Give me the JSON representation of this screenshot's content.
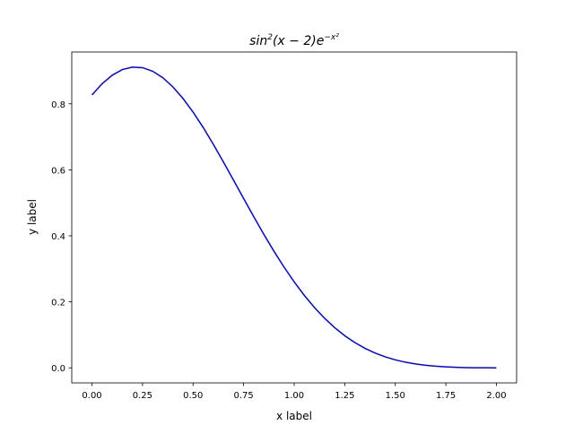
{
  "chart_data": {
    "type": "line",
    "title": "sin²(x − 2)e^(−x²)",
    "title_parts": {
      "base": "sin",
      "sup1": "2",
      "mid": "(x − 2)e",
      "sup2": "−x²"
    },
    "xlabel": "x label",
    "ylabel": "y label",
    "xlim": [
      -0.1,
      2.1
    ],
    "ylim": [
      -0.0456,
      0.957
    ],
    "grid": false,
    "xticks": [
      0,
      0.25,
      0.5,
      0.75,
      1.0,
      1.25,
      1.5,
      1.75,
      2.0
    ],
    "xtick_labels": [
      "0.00",
      "0.25",
      "0.50",
      "0.75",
      "1.00",
      "1.25",
      "1.50",
      "1.75",
      "2.00"
    ],
    "yticks": [
      0,
      0.2,
      0.4,
      0.6,
      0.8
    ],
    "ytick_labels": [
      "0.0",
      "0.2",
      "0.4",
      "0.6",
      "0.8"
    ],
    "series": [
      {
        "color": "#0000ff",
        "x": [
          0,
          0.05,
          0.1,
          0.15,
          0.2,
          0.25,
          0.3,
          0.35,
          0.4,
          0.45,
          0.5,
          0.55,
          0.6,
          0.65,
          0.7,
          0.75,
          0.8,
          0.85,
          0.9,
          0.95,
          1.0,
          1.05,
          1.1,
          1.15,
          1.2,
          1.25,
          1.3,
          1.35,
          1.4,
          1.45,
          1.5,
          1.55,
          1.6,
          1.65,
          1.7,
          1.75,
          1.8,
          1.85,
          1.9,
          1.95,
          2.0
        ],
        "y": [
          0.8268,
          0.8609,
          0.8866,
          0.9038,
          0.9112,
          0.9096,
          0.8988,
          0.8792,
          0.8514,
          0.8163,
          0.7749,
          0.7283,
          0.6775,
          0.6239,
          0.5688,
          0.5132,
          0.458,
          0.4045,
          0.3533,
          0.3052,
          0.2605,
          0.2197,
          0.183,
          0.1504,
          0.1219,
          0.0974,
          0.0766,
          0.0592,
          0.0449,
          0.0334,
          0.0242,
          0.0171,
          0.0117,
          0.0077,
          0.0049,
          0.0029,
          0.0015,
          0.0007,
          0.0003,
          0.0001,
          0.0
        ]
      }
    ]
  }
}
